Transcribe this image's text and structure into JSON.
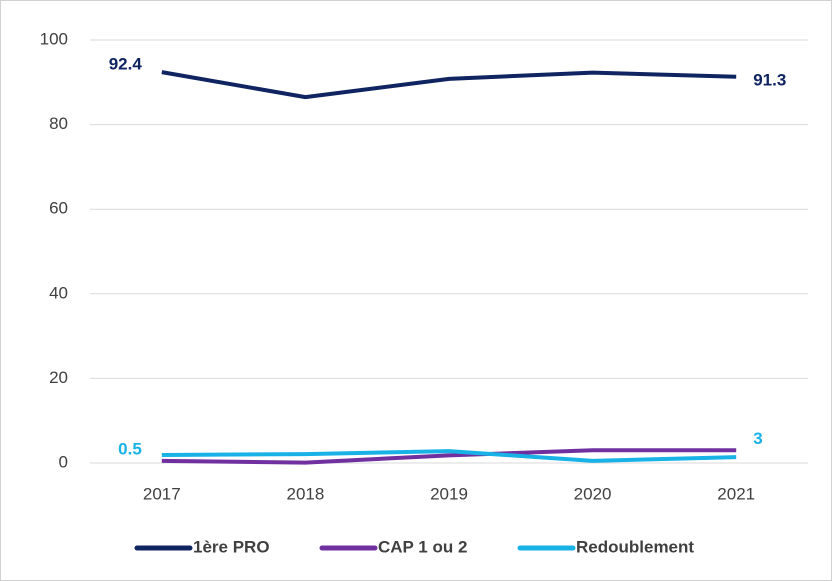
{
  "chart_data": {
    "type": "line",
    "categories": [
      "2017",
      "2018",
      "2019",
      "2020",
      "2021"
    ],
    "series": [
      {
        "name": "1ère PRO",
        "color": "#0f2460",
        "values": [
          92.4,
          86.5,
          90.8,
          92.3,
          91.3
        ],
        "value_labels": [
          "92.4",
          null,
          null,
          null,
          "91.3"
        ],
        "label_color": "#0f2460"
      },
      {
        "name": "CAP 1 ou 2",
        "color": "#7030a0",
        "values": [
          0.5,
          0.1,
          1.8,
          3.0,
          3.0
        ],
        "value_labels": [
          "0.5",
          null,
          null,
          null,
          "3"
        ],
        "label_color": "#19b2e6"
      },
      {
        "name": "Redoublement",
        "color": "#19b2e6",
        "values": [
          1.9,
          2.1,
          2.8,
          0.5,
          1.4
        ]
      }
    ],
    "ylim": [
      0,
      100
    ],
    "yticks": [
      0,
      20,
      40,
      60,
      80,
      100
    ],
    "grid": true,
    "legend": "bottom"
  }
}
